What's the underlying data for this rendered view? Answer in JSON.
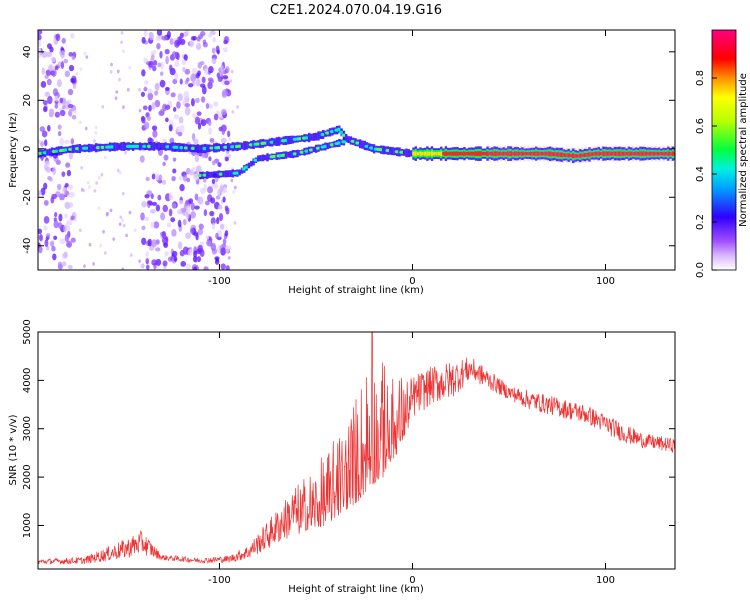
{
  "title": "C2E1.2024.070.04.19.G16",
  "chart_data": [
    {
      "type": "heatmap",
      "xlabel": "Height of straight line (km)",
      "ylabel": "Frequency (Hz)",
      "xlim": [
        -194,
        136
      ],
      "ylim": [
        -50,
        49
      ],
      "xticks": [
        -100,
        0,
        100
      ],
      "xtick_labels": [
        "-100",
        "0",
        "100"
      ],
      "yticks": [
        -40,
        -20,
        0,
        20,
        40
      ],
      "ytick_labels": [
        "-40",
        "-20",
        "0",
        "20",
        "40"
      ],
      "colorbar": {
        "label": "Normalized spectral amplitude",
        "range": [
          0,
          1
        ],
        "ticks": [
          0.0,
          0.2,
          0.4,
          0.6,
          0.8
        ],
        "tick_labels": [
          "0.0",
          "0.2",
          "0.4",
          "0.6",
          "0.8"
        ],
        "colors": [
          "#ffffff",
          "#b070ff",
          "#3000ff",
          "#00d8ff",
          "#00ff40",
          "#b8ff00",
          "#ffff00",
          "#ff9000",
          "#ff0000",
          "#ff0080"
        ]
      },
      "traces": [
        {
          "name": "main-band",
          "points": [
            [
              -194,
              -2
            ],
            [
              -175,
              0
            ],
            [
              -150,
              1
            ],
            [
              -130,
              1
            ],
            [
              -110,
              0
            ],
            [
              -90,
              1
            ],
            [
              -70,
              3
            ],
            [
              -50,
              5
            ],
            [
              -38,
              8
            ],
            [
              -34,
              4
            ],
            [
              -20,
              0
            ],
            [
              0,
              -2
            ],
            [
              10,
              -2
            ],
            [
              40,
              -2
            ],
            [
              70,
              -2
            ],
            [
              85,
              -3
            ],
            [
              95,
              -2
            ],
            [
              136,
              -2
            ]
          ]
        },
        {
          "name": "lower-band",
          "points": [
            [
              -110,
              -11
            ],
            [
              -90,
              -10
            ],
            [
              -80,
              -4
            ],
            [
              -60,
              -2
            ],
            [
              -45,
              1
            ],
            [
              -35,
              3
            ]
          ]
        }
      ],
      "scatter_regions": [
        {
          "name": "noise-left",
          "x": [
            -194,
            -175
          ]
        },
        {
          "name": "noise-middle",
          "x": [
            -140,
            -95
          ]
        }
      ]
    },
    {
      "type": "line",
      "xlabel": "Height of straight line (km)",
      "ylabel": "SNR (10 * v/v)",
      "xlim": [
        -194,
        136
      ],
      "ylim": [
        100,
        5000
      ],
      "xticks": [
        -100,
        0,
        100
      ],
      "xtick_labels": [
        "-100",
        "0",
        "100"
      ],
      "yticks": [
        1000,
        2000,
        3000,
        4000,
        5000
      ],
      "ytick_labels": [
        "1000",
        "2000",
        "3000",
        "4000",
        "5000"
      ],
      "color": "#ee3333",
      "envelope": {
        "x": [
          -194,
          -170,
          -150,
          -140,
          -130,
          -110,
          -95,
          -85,
          -75,
          -65,
          -55,
          -45,
          -35,
          -28,
          -22,
          -15,
          -8,
          0,
          10,
          20,
          30,
          40,
          50,
          60,
          70,
          80,
          90,
          100,
          110,
          120,
          136
        ],
        "lo": [
          200,
          200,
          300,
          400,
          280,
          220,
          230,
          300,
          500,
          700,
          900,
          1000,
          1300,
          1500,
          1800,
          2000,
          2500,
          3200,
          3500,
          3600,
          4000,
          3800,
          3600,
          3400,
          3300,
          3200,
          3100,
          2900,
          2700,
          2600,
          2500
        ],
        "hi": [
          300,
          350,
          700,
          900,
          400,
          330,
          380,
          600,
          1100,
          1600,
          2100,
          2500,
          3200,
          3900,
          4900,
          3900,
          4200,
          4100,
          4300,
          4400,
          4500,
          4200,
          3900,
          3800,
          3700,
          3600,
          3500,
          3300,
          3100,
          2900,
          2800
        ]
      }
    }
  ]
}
